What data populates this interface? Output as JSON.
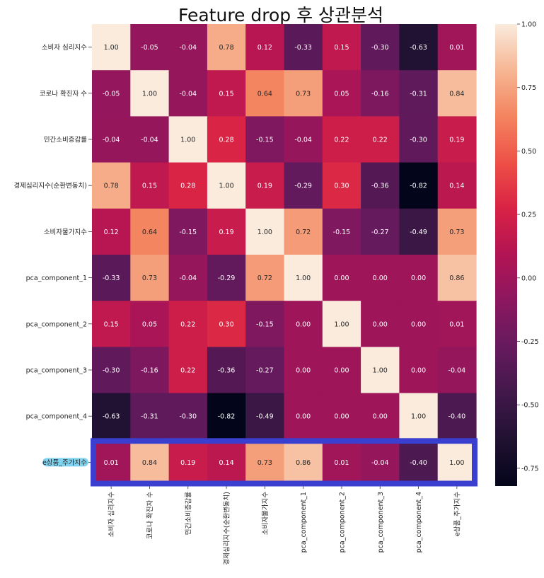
{
  "chart_data": {
    "type": "heatmap",
    "title": "Feature drop 후 상관분석",
    "labels": [
      "소비자 심리지수",
      "코로나 확진자 수",
      "민간소비증감률",
      "경제심리지수(순환변동치)",
      "소비자물가지수",
      "pca_component_1",
      "pca_component_2",
      "pca_component_3",
      "pca_component_4",
      "e상품_주가지수"
    ],
    "matrix": [
      [
        1.0,
        -0.05,
        -0.04,
        0.78,
        0.12,
        -0.33,
        0.15,
        -0.3,
        -0.63,
        0.01
      ],
      [
        -0.05,
        1.0,
        -0.04,
        0.15,
        0.64,
        0.73,
        0.05,
        -0.16,
        -0.31,
        0.84
      ],
      [
        -0.04,
        -0.04,
        1.0,
        0.28,
        -0.15,
        -0.04,
        0.22,
        0.22,
        -0.3,
        0.19
      ],
      [
        0.78,
        0.15,
        0.28,
        1.0,
        0.19,
        -0.29,
        0.3,
        -0.36,
        -0.82,
        0.14
      ],
      [
        0.12,
        0.64,
        -0.15,
        0.19,
        1.0,
        0.72,
        -0.15,
        -0.27,
        -0.49,
        0.73
      ],
      [
        -0.33,
        0.73,
        -0.04,
        -0.29,
        0.72,
        1.0,
        0.0,
        0.0,
        0.0,
        0.86
      ],
      [
        0.15,
        0.05,
        0.22,
        0.3,
        -0.15,
        0.0,
        1.0,
        -0.0,
        0.0,
        0.01
      ],
      [
        -0.3,
        -0.16,
        0.22,
        -0.36,
        -0.27,
        0.0,
        -0.0,
        1.0,
        -0.0,
        -0.04
      ],
      [
        -0.63,
        -0.31,
        -0.3,
        -0.82,
        -0.49,
        0.0,
        0.0,
        -0.0,
        1.0,
        -0.4
      ],
      [
        0.01,
        0.84,
        0.19,
        0.14,
        0.73,
        0.86,
        0.01,
        -0.04,
        -0.4,
        1.0
      ]
    ],
    "vmin": -0.82,
    "vmax": 1.0,
    "colormap": "rocket",
    "colorbar_ticks": [
      1.0,
      0.75,
      0.5,
      0.25,
      0.0,
      -0.25,
      -0.5,
      -0.75
    ],
    "colorbar_tick_labels": [
      "1.00",
      "0.75",
      "0.50",
      "0.25",
      "0.00",
      "-0.25",
      "-0.50",
      "-0.75"
    ],
    "highlighted_row": "e상품_주가지수",
    "highlight_color": "#3a3fd0",
    "label_highlight_color": "#7fd3f0"
  }
}
